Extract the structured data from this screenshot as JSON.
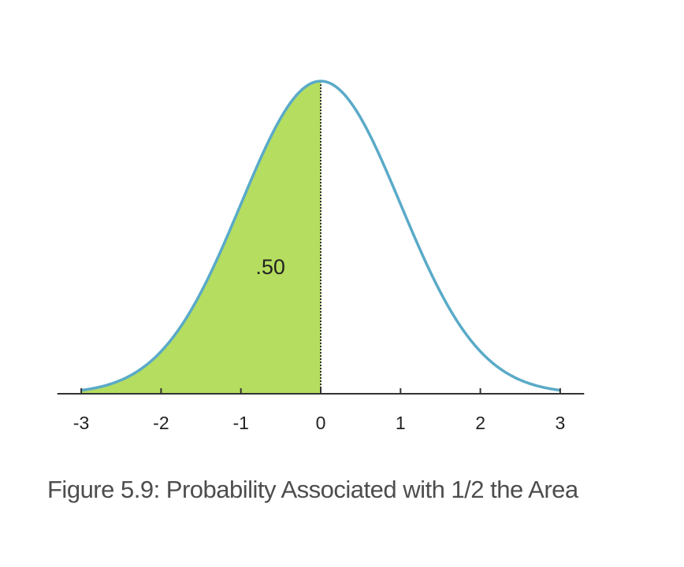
{
  "caption": "Figure 5.9: Probability Associated with 1/2 the Area",
  "chart_data": {
    "type": "area",
    "distribution": "standard normal",
    "x_ticks": [
      -3,
      -2,
      -1,
      0,
      1,
      2,
      3
    ],
    "x_tick_labels": [
      "-3",
      "-2",
      "-1",
      "0",
      "1",
      "2",
      "3"
    ],
    "xlim": [
      -3.3,
      3.3
    ],
    "shaded_region": {
      "from": -3,
      "to": 0,
      "label": ".50",
      "value": 0.5
    },
    "colors": {
      "curve": "#5aaac8",
      "fill": "#b5dd5f",
      "axis": "#333333",
      "divider": "#333333"
    },
    "grid": false
  }
}
